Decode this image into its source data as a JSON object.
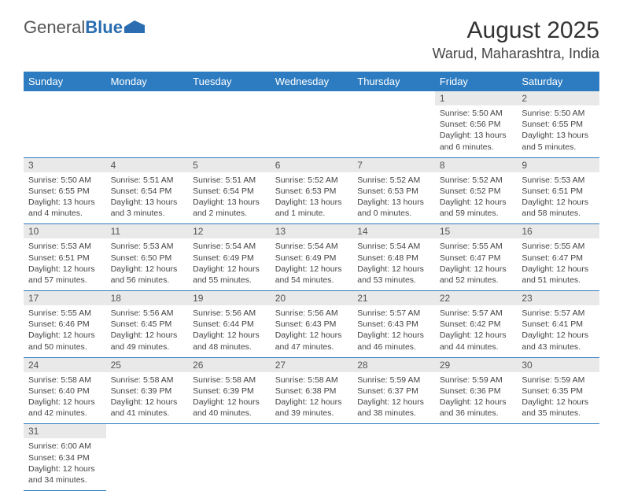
{
  "brand": {
    "general": "General",
    "blue": "Blue"
  },
  "title": {
    "month": "August 2025",
    "location": "Warud, Maharashtra, India"
  },
  "colors": {
    "header_bg": "#2d7cc1",
    "brand_blue": "#2a6db0"
  },
  "weekdays": [
    "Sunday",
    "Monday",
    "Tuesday",
    "Wednesday",
    "Thursday",
    "Friday",
    "Saturday"
  ],
  "weeks": [
    [
      null,
      null,
      null,
      null,
      null,
      {
        "n": "1",
        "sr": "Sunrise: 5:50 AM",
        "ss": "Sunset: 6:56 PM",
        "d1": "Daylight: 13 hours",
        "d2": "and 6 minutes."
      },
      {
        "n": "2",
        "sr": "Sunrise: 5:50 AM",
        "ss": "Sunset: 6:55 PM",
        "d1": "Daylight: 13 hours",
        "d2": "and 5 minutes."
      }
    ],
    [
      {
        "n": "3",
        "sr": "Sunrise: 5:50 AM",
        "ss": "Sunset: 6:55 PM",
        "d1": "Daylight: 13 hours",
        "d2": "and 4 minutes."
      },
      {
        "n": "4",
        "sr": "Sunrise: 5:51 AM",
        "ss": "Sunset: 6:54 PM",
        "d1": "Daylight: 13 hours",
        "d2": "and 3 minutes."
      },
      {
        "n": "5",
        "sr": "Sunrise: 5:51 AM",
        "ss": "Sunset: 6:54 PM",
        "d1": "Daylight: 13 hours",
        "d2": "and 2 minutes."
      },
      {
        "n": "6",
        "sr": "Sunrise: 5:52 AM",
        "ss": "Sunset: 6:53 PM",
        "d1": "Daylight: 13 hours",
        "d2": "and 1 minute."
      },
      {
        "n": "7",
        "sr": "Sunrise: 5:52 AM",
        "ss": "Sunset: 6:53 PM",
        "d1": "Daylight: 13 hours",
        "d2": "and 0 minutes."
      },
      {
        "n": "8",
        "sr": "Sunrise: 5:52 AM",
        "ss": "Sunset: 6:52 PM",
        "d1": "Daylight: 12 hours",
        "d2": "and 59 minutes."
      },
      {
        "n": "9",
        "sr": "Sunrise: 5:53 AM",
        "ss": "Sunset: 6:51 PM",
        "d1": "Daylight: 12 hours",
        "d2": "and 58 minutes."
      }
    ],
    [
      {
        "n": "10",
        "sr": "Sunrise: 5:53 AM",
        "ss": "Sunset: 6:51 PM",
        "d1": "Daylight: 12 hours",
        "d2": "and 57 minutes."
      },
      {
        "n": "11",
        "sr": "Sunrise: 5:53 AM",
        "ss": "Sunset: 6:50 PM",
        "d1": "Daylight: 12 hours",
        "d2": "and 56 minutes."
      },
      {
        "n": "12",
        "sr": "Sunrise: 5:54 AM",
        "ss": "Sunset: 6:49 PM",
        "d1": "Daylight: 12 hours",
        "d2": "and 55 minutes."
      },
      {
        "n": "13",
        "sr": "Sunrise: 5:54 AM",
        "ss": "Sunset: 6:49 PM",
        "d1": "Daylight: 12 hours",
        "d2": "and 54 minutes."
      },
      {
        "n": "14",
        "sr": "Sunrise: 5:54 AM",
        "ss": "Sunset: 6:48 PM",
        "d1": "Daylight: 12 hours",
        "d2": "and 53 minutes."
      },
      {
        "n": "15",
        "sr": "Sunrise: 5:55 AM",
        "ss": "Sunset: 6:47 PM",
        "d1": "Daylight: 12 hours",
        "d2": "and 52 minutes."
      },
      {
        "n": "16",
        "sr": "Sunrise: 5:55 AM",
        "ss": "Sunset: 6:47 PM",
        "d1": "Daylight: 12 hours",
        "d2": "and 51 minutes."
      }
    ],
    [
      {
        "n": "17",
        "sr": "Sunrise: 5:55 AM",
        "ss": "Sunset: 6:46 PM",
        "d1": "Daylight: 12 hours",
        "d2": "and 50 minutes."
      },
      {
        "n": "18",
        "sr": "Sunrise: 5:56 AM",
        "ss": "Sunset: 6:45 PM",
        "d1": "Daylight: 12 hours",
        "d2": "and 49 minutes."
      },
      {
        "n": "19",
        "sr": "Sunrise: 5:56 AM",
        "ss": "Sunset: 6:44 PM",
        "d1": "Daylight: 12 hours",
        "d2": "and 48 minutes."
      },
      {
        "n": "20",
        "sr": "Sunrise: 5:56 AM",
        "ss": "Sunset: 6:43 PM",
        "d1": "Daylight: 12 hours",
        "d2": "and 47 minutes."
      },
      {
        "n": "21",
        "sr": "Sunrise: 5:57 AM",
        "ss": "Sunset: 6:43 PM",
        "d1": "Daylight: 12 hours",
        "d2": "and 46 minutes."
      },
      {
        "n": "22",
        "sr": "Sunrise: 5:57 AM",
        "ss": "Sunset: 6:42 PM",
        "d1": "Daylight: 12 hours",
        "d2": "and 44 minutes."
      },
      {
        "n": "23",
        "sr": "Sunrise: 5:57 AM",
        "ss": "Sunset: 6:41 PM",
        "d1": "Daylight: 12 hours",
        "d2": "and 43 minutes."
      }
    ],
    [
      {
        "n": "24",
        "sr": "Sunrise: 5:58 AM",
        "ss": "Sunset: 6:40 PM",
        "d1": "Daylight: 12 hours",
        "d2": "and 42 minutes."
      },
      {
        "n": "25",
        "sr": "Sunrise: 5:58 AM",
        "ss": "Sunset: 6:39 PM",
        "d1": "Daylight: 12 hours",
        "d2": "and 41 minutes."
      },
      {
        "n": "26",
        "sr": "Sunrise: 5:58 AM",
        "ss": "Sunset: 6:39 PM",
        "d1": "Daylight: 12 hours",
        "d2": "and 40 minutes."
      },
      {
        "n": "27",
        "sr": "Sunrise: 5:58 AM",
        "ss": "Sunset: 6:38 PM",
        "d1": "Daylight: 12 hours",
        "d2": "and 39 minutes."
      },
      {
        "n": "28",
        "sr": "Sunrise: 5:59 AM",
        "ss": "Sunset: 6:37 PM",
        "d1": "Daylight: 12 hours",
        "d2": "and 38 minutes."
      },
      {
        "n": "29",
        "sr": "Sunrise: 5:59 AM",
        "ss": "Sunset: 6:36 PM",
        "d1": "Daylight: 12 hours",
        "d2": "and 36 minutes."
      },
      {
        "n": "30",
        "sr": "Sunrise: 5:59 AM",
        "ss": "Sunset: 6:35 PM",
        "d1": "Daylight: 12 hours",
        "d2": "and 35 minutes."
      }
    ],
    [
      {
        "n": "31",
        "sr": "Sunrise: 6:00 AM",
        "ss": "Sunset: 6:34 PM",
        "d1": "Daylight: 12 hours",
        "d2": "and 34 minutes."
      },
      null,
      null,
      null,
      null,
      null,
      null
    ]
  ]
}
